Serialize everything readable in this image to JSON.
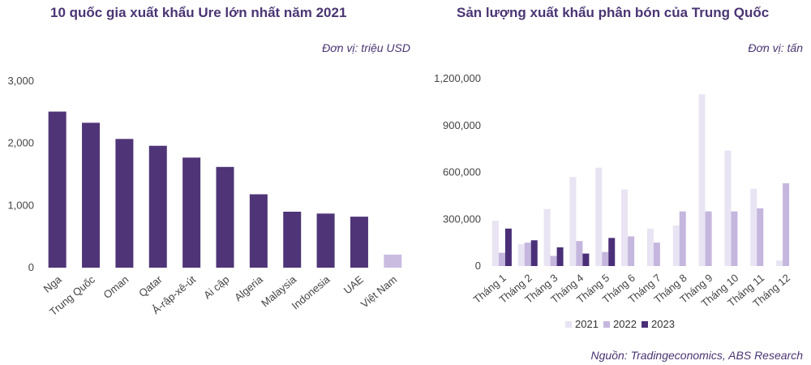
{
  "source": "Nguồn: Tradingeconomics, ABS Research",
  "chart_data": [
    {
      "type": "bar",
      "title": "10 quốc gia xuất khẩu Ure lớn nhất năm 2021",
      "unit": "Đơn vị: triệu USD",
      "categories": [
        "Nga",
        "Trung Quốc",
        "Oman",
        "Qatar",
        "Ả-rập-xê-út",
        "Ai cập",
        "Algeria",
        "Malaysia",
        "Indonesia",
        "UAE",
        "Việt Nam"
      ],
      "values": [
        2510,
        2330,
        2070,
        1960,
        1770,
        1620,
        1180,
        900,
        870,
        820,
        210
      ],
      "colors": [
        "#4f3577",
        "#4f3577",
        "#4f3577",
        "#4f3577",
        "#4f3577",
        "#4f3577",
        "#4f3577",
        "#4f3577",
        "#4f3577",
        "#4f3577",
        "#c9bce0"
      ],
      "ylim": [
        0,
        3000
      ],
      "yticks": [
        0,
        1000,
        2000,
        3000
      ],
      "ytick_labels": [
        "0",
        "1,000",
        "2,000",
        "3,000"
      ],
      "grid": false
    },
    {
      "type": "bar",
      "title": "Sản lượng xuất khẩu phân bón của Trung Quốc",
      "unit": "Đơn vị: tấn",
      "categories": [
        "Tháng 1",
        "Tháng 2",
        "Tháng 3",
        "Tháng 4",
        "Tháng 5",
        "Tháng 6",
        "Tháng 7",
        "Tháng 8",
        "Tháng 9",
        "Tháng 10",
        "Tháng 11",
        "Tháng 12"
      ],
      "series": [
        {
          "name": "2021",
          "color": "#e8e4f3",
          "values": [
            290000,
            140000,
            365000,
            570000,
            630000,
            490000,
            240000,
            260000,
            1100000,
            740000,
            495000,
            35000
          ]
        },
        {
          "name": "2022",
          "color": "#c5b6de",
          "values": [
            85000,
            150000,
            65000,
            160000,
            90000,
            190000,
            150000,
            350000,
            350000,
            350000,
            370000,
            530000
          ]
        },
        {
          "name": "2023",
          "color": "#4a2f78",
          "values": [
            240000,
            165000,
            120000,
            80000,
            180000,
            null,
            null,
            null,
            null,
            null,
            null,
            null
          ]
        }
      ],
      "ylim": [
        0,
        1200000
      ],
      "yticks": [
        0,
        300000,
        600000,
        900000,
        1200000
      ],
      "ytick_labels": [
        "0",
        "300,000",
        "600,000",
        "900,000",
        "1,200,000"
      ],
      "legend": "bottom",
      "grid": false
    }
  ]
}
